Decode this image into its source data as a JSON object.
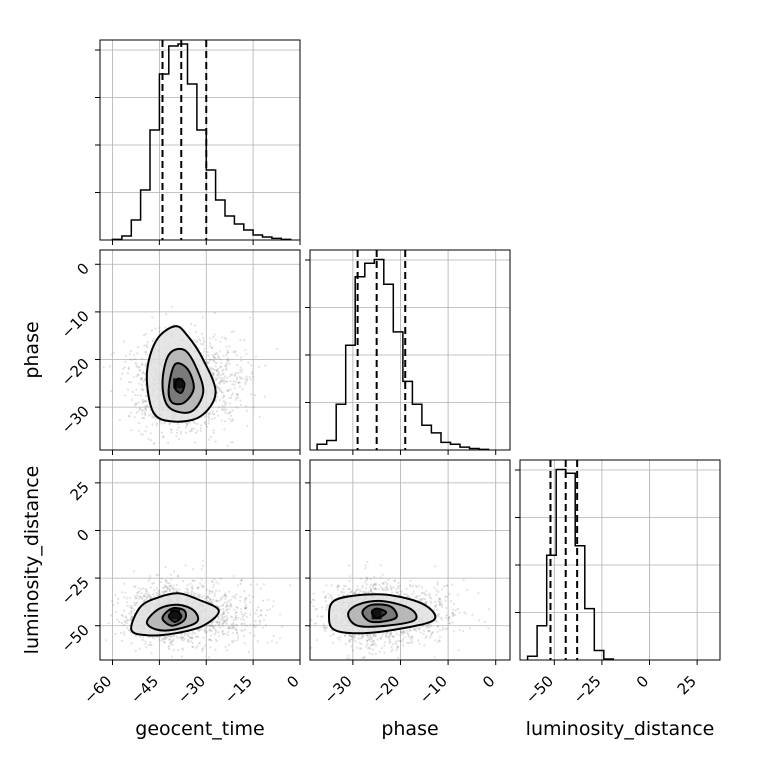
{
  "chart_data": {
    "type": "corner",
    "parameters": [
      "geocent_time",
      "phase",
      "luminosity_distance"
    ],
    "quantile_lines": [
      0.16,
      0.5,
      0.84
    ],
    "grid": true,
    "axes": {
      "geocent_time": {
        "range": [
          -64,
          0
        ],
        "ticks": [
          -60,
          -45,
          -30,
          -15,
          0
        ],
        "tick_labels": [
          "−60",
          "−45",
          "−30",
          "−15",
          "0"
        ]
      },
      "phase": {
        "range": [
          -39,
          3
        ],
        "ticks": [
          -30,
          -20,
          -10,
          0
        ],
        "tick_labels": [
          "−30",
          "−20",
          "−10",
          "0"
        ]
      },
      "luminosity_distance": {
        "range": [
          -68,
          37
        ],
        "ticks": [
          -50,
          -25,
          0,
          25
        ],
        "tick_labels": [
          "−50",
          "−25",
          "0",
          "25"
        ]
      }
    },
    "marginals": [
      {
        "parameter": "geocent_time",
        "bin_edges": [
          -60,
          -57,
          -54,
          -51,
          -48,
          -45,
          -42,
          -39,
          -36,
          -33,
          -30,
          -27,
          -24,
          -21,
          -18,
          -15,
          -12,
          -9,
          -6,
          -3
        ],
        "counts": [
          0.3,
          2,
          10,
          25,
          55,
          83,
          97,
          98,
          78,
          55,
          35,
          20,
          12,
          8,
          5,
          2.5,
          1.5,
          0.8,
          0.3
        ],
        "max_count": 100,
        "quantiles": [
          -44,
          -38,
          -30
        ]
      },
      {
        "parameter": "phase",
        "bin_edges": [
          -37.5,
          -35.5,
          -33.5,
          -31.5,
          -29.5,
          -27.5,
          -25.5,
          -23.5,
          -21.5,
          -19.5,
          -17.5,
          -15.5,
          -13.5,
          -11.5,
          -9.5,
          -7.5,
          -5.5,
          -3.5,
          -1.5
        ],
        "counts": [
          3,
          5,
          24,
          55,
          91,
          98,
          100,
          87,
          62,
          36,
          24,
          13,
          9,
          4,
          3,
          1.5,
          0.8,
          0.3
        ],
        "max_count": 105,
        "quantiles": [
          -29,
          -25,
          -19
        ]
      },
      {
        "parameter": "luminosity_distance",
        "bin_edges": [
          -64,
          -59,
          -54,
          -49,
          -44,
          -39,
          -34,
          -29,
          -24,
          -19
        ],
        "counts": [
          2,
          18,
          55,
          100,
          98,
          60,
          27,
          5,
          0.5
        ],
        "max_count": 105,
        "quantiles": [
          -52,
          -44,
          -38
        ]
      }
    ],
    "joint": [
      {
        "x": "geocent_time",
        "y": "phase",
        "center": [
          -39,
          -25
        ],
        "spread": [
          7,
          5
        ],
        "levels": [
          [
            [
              -49,
              -23
            ],
            [
              -46,
              -16
            ],
            [
              -40,
              -13
            ],
            [
              -36,
              -15
            ],
            [
              -31,
              -20
            ],
            [
              -27,
              -27
            ],
            [
              -32,
              -32
            ],
            [
              -41,
              -33
            ],
            [
              -47,
              -31
            ]
          ],
          [
            [
              -44,
              -25
            ],
            [
              -42,
              -19
            ],
            [
              -37,
              -18
            ],
            [
              -33,
              -22
            ],
            [
              -31,
              -27
            ],
            [
              -35,
              -31
            ],
            [
              -42,
              -30
            ]
          ],
          [
            [
              -42,
              -26
            ],
            [
              -40,
              -21
            ],
            [
              -36,
              -22
            ],
            [
              -34,
              -26
            ],
            [
              -37,
              -29
            ],
            [
              -41,
              -29
            ]
          ],
          [
            [
              -40,
              -26
            ],
            [
              -39,
              -24
            ],
            [
              -37,
              -25
            ],
            [
              -38,
              -27
            ]
          ]
        ]
      },
      {
        "x": "geocent_time",
        "y": "luminosity_distance",
        "center": [
          -40,
          -44
        ],
        "spread": [
          8,
          8
        ],
        "levels": [
          [
            [
              -54,
              -52
            ],
            [
              -51,
              -40
            ],
            [
              -45,
              -35
            ],
            [
              -39,
              -33
            ],
            [
              -33,
              -36
            ],
            [
              -26,
              -42
            ],
            [
              -31,
              -50
            ],
            [
              -40,
              -54
            ],
            [
              -49,
              -55
            ]
          ],
          [
            [
              -49,
              -48
            ],
            [
              -45,
              -41
            ],
            [
              -39,
              -39
            ],
            [
              -34,
              -42
            ],
            [
              -33,
              -48
            ],
            [
              -40,
              -52
            ],
            [
              -46,
              -52
            ]
          ],
          [
            [
              -44,
              -46
            ],
            [
              -41,
              -41
            ],
            [
              -37,
              -42
            ],
            [
              -37,
              -47
            ],
            [
              -41,
              -50
            ]
          ],
          [
            [
              -42,
              -45
            ],
            [
              -40,
              -42
            ],
            [
              -38,
              -45
            ],
            [
              -40,
              -48
            ]
          ]
        ]
      },
      {
        "x": "phase",
        "y": "luminosity_distance",
        "center": [
          -25,
          -44
        ],
        "spread": [
          5,
          8
        ],
        "levels": [
          [
            [
              -35,
              -45
            ],
            [
              -34,
              -37
            ],
            [
              -29,
              -34
            ],
            [
              -22,
              -34
            ],
            [
              -15,
              -39
            ],
            [
              -13,
              -47
            ],
            [
              -21,
              -52
            ],
            [
              -29,
              -54
            ],
            [
              -34,
              -52
            ]
          ],
          [
            [
              -31,
              -44
            ],
            [
              -29,
              -39
            ],
            [
              -24,
              -37
            ],
            [
              -18,
              -41
            ],
            [
              -17,
              -47
            ],
            [
              -23,
              -50
            ],
            [
              -29,
              -50
            ]
          ],
          [
            [
              -28,
              -43
            ],
            [
              -26,
              -39
            ],
            [
              -22,
              -40
            ],
            [
              -21,
              -46
            ],
            [
              -26,
              -48
            ]
          ],
          [
            [
              -26,
              -43
            ],
            [
              -25,
              -41
            ],
            [
              -23,
              -43
            ],
            [
              -25,
              -46
            ]
          ]
        ]
      }
    ]
  }
}
